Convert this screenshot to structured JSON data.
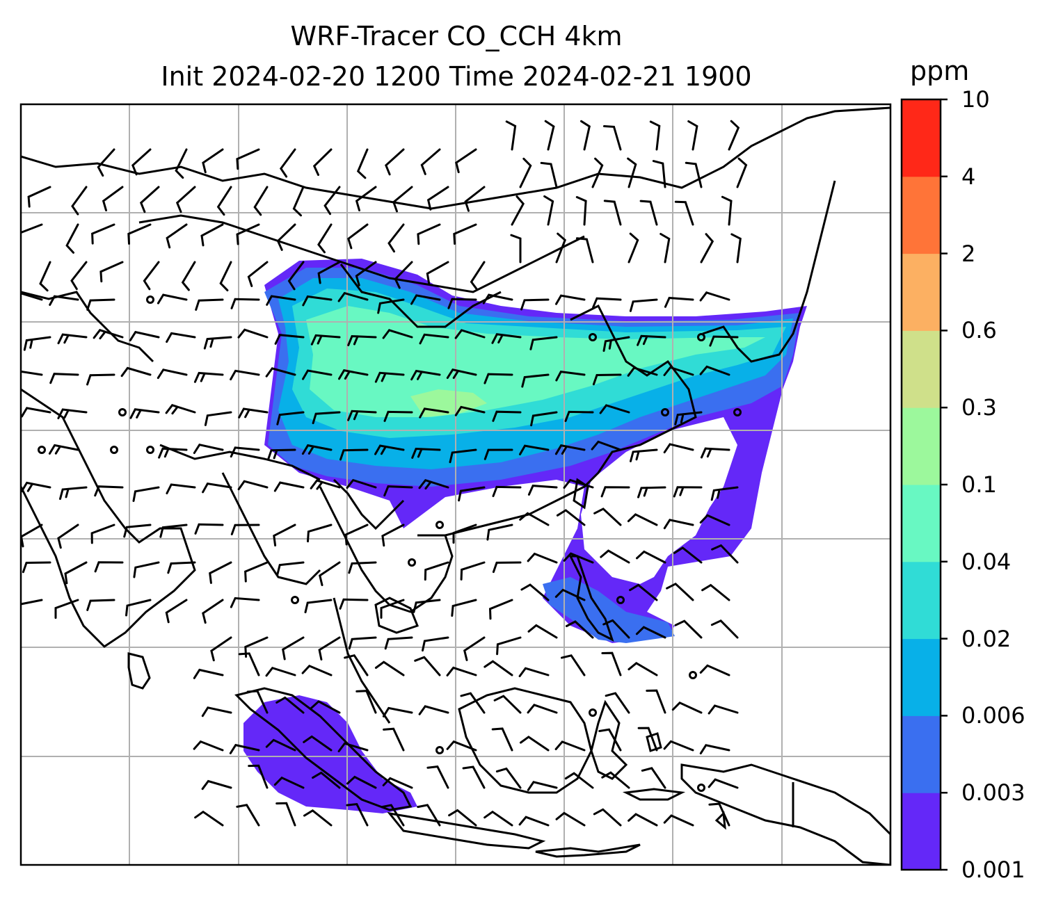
{
  "title": {
    "line1": "WRF-Tracer CO_CCH 4km",
    "line2": "Init 2024-02-20 1200 Time 2024-02-21 1900"
  },
  "colorbar": {
    "unit": "ppm",
    "levels": [
      "0.001",
      "0.003",
      "0.006",
      "0.02",
      "0.04",
      "0.1",
      "0.3",
      "0.6",
      "2",
      "4",
      "10"
    ],
    "colors": [
      "#6428f8",
      "#3a6ff0",
      "#08b0e8",
      "#30dcd6",
      "#68f8c2",
      "#9cf89c",
      "#cfe08a",
      "#fcb062",
      "#ff7438",
      "#ff2818"
    ]
  },
  "map": {
    "gridlines": true,
    "coastlines": true,
    "wind_barbs": true
  }
}
